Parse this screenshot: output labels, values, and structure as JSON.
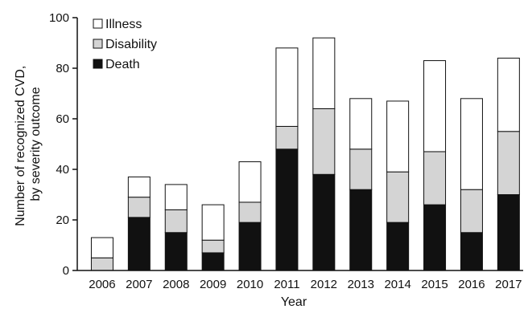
{
  "chart_data": {
    "type": "bar",
    "stacked": true,
    "xlabel": "Year",
    "ylabel_lines": [
      "Number of recognized CVD,",
      "by severity outcome"
    ],
    "ylim": [
      0,
      100
    ],
    "yticks": [
      0,
      20,
      40,
      60,
      80,
      100
    ],
    "categories": [
      "2006",
      "2007",
      "2008",
      "2009",
      "2010",
      "2011",
      "2012",
      "2013",
      "2014",
      "2015",
      "2016",
      "2017"
    ],
    "series": [
      {
        "name": "Death",
        "color": "#111111",
        "values": [
          0,
          21,
          15,
          7,
          19,
          48,
          38,
          32,
          19,
          26,
          15,
          30
        ]
      },
      {
        "name": "Disability",
        "color": "#d4d4d4",
        "values": [
          5,
          8,
          9,
          5,
          8,
          9,
          26,
          16,
          20,
          21,
          17,
          25
        ]
      },
      {
        "name": "Illness",
        "color": "#ffffff",
        "values": [
          8,
          8,
          10,
          14,
          16,
          31,
          28,
          20,
          28,
          36,
          36,
          29
        ]
      }
    ],
    "legend": {
      "position": "top-left",
      "order": [
        "Illness",
        "Disability",
        "Death"
      ]
    },
    "grid": false
  }
}
